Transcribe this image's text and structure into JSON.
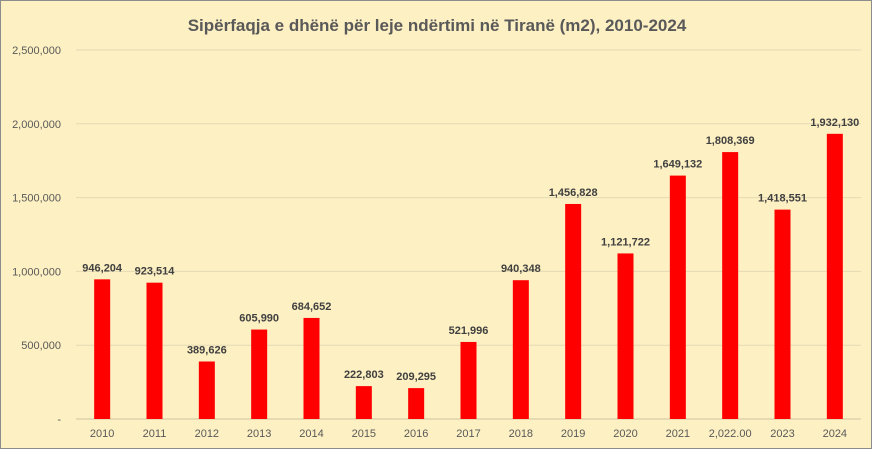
{
  "chart_data": {
    "type": "bar",
    "title": "Sipërfaqja e dhënë për leje ndërtimi në Tiranë (m2), 2010-2024",
    "xlabel": "",
    "ylabel": "",
    "categories": [
      "2010",
      "2011",
      "2012",
      "2013",
      "2014",
      "2015",
      "2016",
      "2017",
      "2018",
      "2019",
      "2020",
      "2021",
      "2,022.00",
      "2023",
      "2024"
    ],
    "values": [
      946204,
      923514,
      389626,
      605990,
      684652,
      222803,
      209295,
      521996,
      940348,
      1456828,
      1121722,
      1649132,
      1808369,
      1418551,
      1932130
    ],
    "data_labels": [
      "946,204",
      "923,514",
      "389,626",
      "605,990",
      "684,652",
      "222,803",
      "209,295",
      "521,996",
      "940,348",
      "1,456,828",
      "1,121,722",
      "1,649,132",
      "1,808,369",
      "1,418,551",
      "1,932,130"
    ],
    "yticks": [
      0,
      500000,
      1000000,
      1500000,
      2000000,
      2500000
    ],
    "ytick_labels": [
      "-",
      "500,000",
      "1,000,000",
      "1,500,000",
      "2,000,000",
      "2,500,000"
    ],
    "ylim": [
      0,
      2500000
    ],
    "grid": true,
    "legend": "none",
    "bar_color": "#ff0000",
    "background_color": "#fdf0c2"
  }
}
